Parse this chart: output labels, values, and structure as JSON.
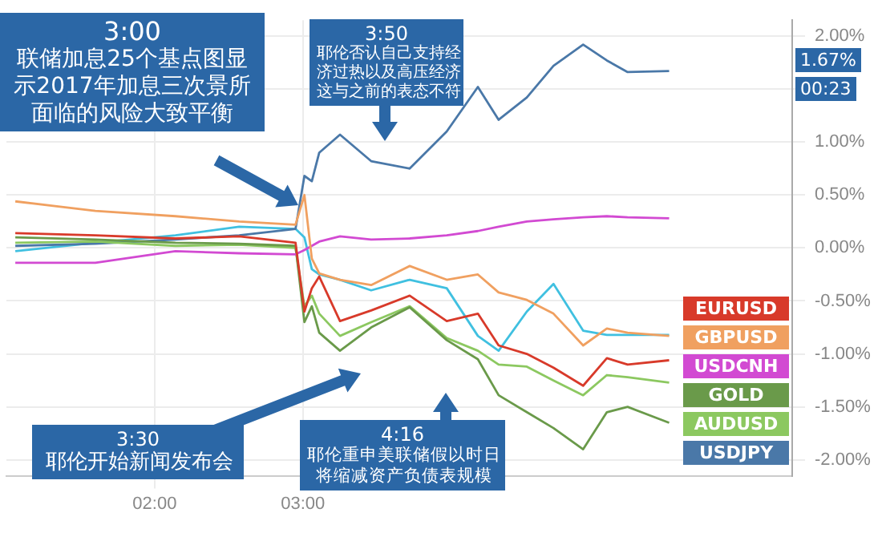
{
  "chart_data": {
    "type": "line",
    "x": [
      1.06,
      1.6,
      2.14,
      2.57,
      2.95,
      3.01,
      3.06,
      3.11,
      3.25,
      3.46,
      3.72,
      3.97,
      4.18,
      4.32,
      4.51,
      4.69,
      4.89,
      5.05,
      5.19,
      5.47
    ],
    "series": [
      {
        "name": "EURUSD",
        "color": "#d83a2a",
        "values": [
          0.14,
          0.12,
          0.09,
          0.11,
          0.05,
          -0.6,
          -0.38,
          -0.27,
          -0.69,
          -0.59,
          -0.45,
          -0.69,
          -0.62,
          -0.92,
          -1.0,
          -1.13,
          -1.3,
          -1.04,
          -1.1,
          -1.06
        ]
      },
      {
        "name": "GBPUSD",
        "color": "#f0a060",
        "values": [
          0.44,
          0.35,
          0.3,
          0.25,
          0.22,
          0.5,
          -0.1,
          -0.24,
          -0.3,
          -0.35,
          -0.17,
          -0.3,
          -0.25,
          -0.42,
          -0.49,
          -0.62,
          -0.92,
          -0.76,
          -0.8,
          -0.83
        ]
      },
      {
        "name": "USDCNH",
        "color": "#d24ad2",
        "values": [
          -0.14,
          -0.14,
          -0.03,
          -0.05,
          -0.06,
          -0.02,
          0.02,
          0.06,
          0.11,
          0.08,
          0.09,
          0.12,
          0.16,
          0.2,
          0.25,
          0.27,
          0.29,
          0.3,
          0.29,
          0.28
        ]
      },
      {
        "name": "GOLD",
        "color": "#6a9a4a",
        "values": [
          0.1,
          0.08,
          0.05,
          0.04,
          0.02,
          -0.7,
          -0.55,
          -0.8,
          -0.97,
          -0.75,
          -0.56,
          -0.87,
          -1.05,
          -1.39,
          -1.55,
          -1.7,
          -1.9,
          -1.55,
          -1.5,
          -1.65
        ]
      },
      {
        "name": "AUDUSD",
        "color": "#8cc860",
        "values": [
          0.05,
          0.06,
          0.02,
          0.03,
          0.0,
          -0.55,
          -0.45,
          -0.62,
          -0.83,
          -0.7,
          -0.55,
          -0.85,
          -0.97,
          -1.1,
          -1.12,
          -1.25,
          -1.39,
          -1.2,
          -1.22,
          -1.27
        ]
      },
      {
        "name": "USDJPY",
        "color": "#4a78a8",
        "values": [
          0.02,
          0.04,
          0.08,
          0.12,
          0.18,
          0.68,
          0.63,
          0.9,
          1.07,
          0.82,
          0.75,
          1.1,
          1.52,
          1.21,
          1.42,
          1.72,
          1.92,
          1.77,
          1.66,
          1.67
        ]
      },
      {
        "color": "#40c0e0",
        "values": [
          -0.03,
          0.05,
          0.12,
          0.2,
          0.18,
          0.1,
          -0.2,
          -0.25,
          -0.3,
          -0.4,
          -0.3,
          -0.38,
          -0.83,
          -0.97,
          -0.6,
          -0.34,
          -0.78,
          -0.82,
          -0.82,
          -0.82
        ]
      }
    ],
    "xlim": [
      1.0,
      6.3
    ],
    "xticks": [
      {
        "value": 2,
        "label": "02:00"
      },
      {
        "value": 3,
        "label": "03:00"
      }
    ],
    "ylim": [
      -2.15,
      2.15
    ],
    "yticks": [
      {
        "value": 2,
        "label": "2.00%"
      },
      {
        "value": 1.5,
        "label": null
      },
      {
        "value": 1,
        "label": "1.00%"
      },
      {
        "value": 0.5,
        "label": "0.50%"
      },
      {
        "value": 0,
        "label": "0.00%"
      },
      {
        "value": -0.5,
        "label": "-0.50%"
      },
      {
        "value": -1,
        "label": "-1.00%"
      },
      {
        "value": -1.5,
        "label": "-1.50%"
      },
      {
        "value": -2,
        "label": "-2.00%"
      }
    ],
    "grid": true,
    "legend": "right",
    "marker": "none",
    "line_style": "solid",
    "annotations": [
      "3:00",
      "联储加息25个基点图显示2017年加息三次景所面临的风险大致平衡",
      "3:50",
      "耶伦否认自己支持经济过热以及高压经济这与之前的表态不符",
      "3:30",
      "耶伦开始新闻发布会",
      "4:16",
      "耶伦重申美联储假以时日将缩减资产负债表规模",
      "1.67%",
      "00:23"
    ]
  }
}
